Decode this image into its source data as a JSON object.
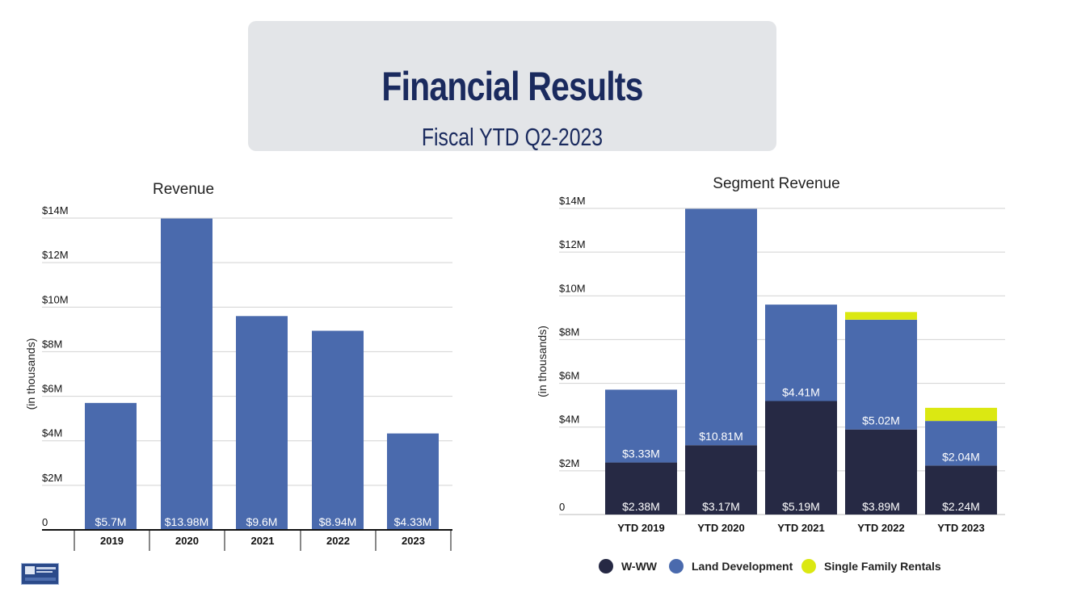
{
  "header": {
    "title": "Financial Results",
    "subtitle": "Fiscal YTD Q2-2023"
  },
  "colors": {
    "revenue_bar": "#4a6aad",
    "wwww": "#262944",
    "land_development": "#4a6aad",
    "single_family_rentals": "#dbe812",
    "title_text": "#1a2a5e",
    "title_box": "#e3e5e8"
  },
  "chart_data": [
    {
      "type": "bar",
      "title": "Revenue",
      "ylabel": "(in thousands)",
      "xlabel": "",
      "categories": [
        "2019",
        "2020",
        "2021",
        "2022",
        "2023"
      ],
      "values": [
        5.7,
        13.98,
        9.6,
        8.94,
        4.33
      ],
      "value_labels": [
        "$5.7M",
        "$13.98M",
        "$9.6M",
        "$8.94M",
        "$4.33M"
      ],
      "ylim": [
        0,
        14
      ],
      "yticks": [
        0,
        2,
        4,
        6,
        8,
        10,
        12,
        14
      ],
      "ytick_labels": [
        "0",
        "$2M",
        "$4M",
        "$6M",
        "$8M",
        "$10M",
        "$12M",
        "$14M"
      ],
      "grid": true
    },
    {
      "type": "bar",
      "stacked": true,
      "title": "Segment Revenue",
      "ylabel": "(in thousands)",
      "xlabel": "",
      "categories": [
        "YTD 2019",
        "YTD 2020",
        "YTD 2021",
        "YTD 2022",
        "YTD 2023"
      ],
      "series": [
        {
          "name": "W-WW",
          "values": [
            2.38,
            3.17,
            5.19,
            3.89,
            2.24
          ],
          "value_labels": [
            "$2.38M",
            "$3.17M",
            "$5.19M",
            "$3.89M",
            "$2.24M"
          ]
        },
        {
          "name": "Land Development",
          "values": [
            3.33,
            10.81,
            4.41,
            5.02,
            2.04
          ],
          "value_labels": [
            "$3.33M",
            "$10.81M",
            "$4.41M",
            "$5.02M",
            "$2.04M"
          ]
        },
        {
          "name": "Single Family Rentals",
          "values": [
            0,
            0,
            0,
            0.35,
            0.6
          ],
          "value_labels": [
            "",
            "",
            "",
            "",
            ""
          ]
        }
      ],
      "ylim": [
        0,
        14
      ],
      "yticks": [
        0,
        2,
        4,
        6,
        8,
        10,
        12,
        14
      ],
      "ytick_labels": [
        "0",
        "$2M",
        "$4M",
        "$6M",
        "$8M",
        "$10M",
        "$12M",
        "$14M"
      ],
      "legend": "bottom",
      "grid": true
    }
  ]
}
